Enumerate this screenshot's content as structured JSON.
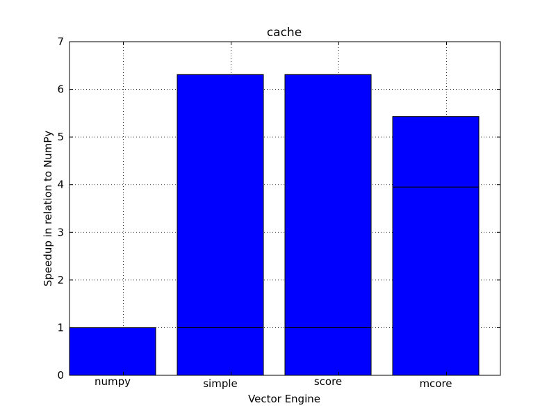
{
  "chart_data": {
    "type": "bar",
    "title": "cache",
    "xlabel": "Vector Engine",
    "ylabel": "Speedup in relation to NumPy",
    "categories": [
      "numpy",
      "simple",
      "score",
      "mcore"
    ],
    "series": [
      {
        "values": [
          1.0,
          1.0,
          1.0,
          3.95
        ]
      },
      {
        "values": [
          0.0,
          5.31,
          5.31,
          1.48
        ]
      }
    ],
    "stacked": true,
    "ylim": [
      0,
      7
    ],
    "yticks": [
      "0",
      "1",
      "2",
      "3",
      "4",
      "5",
      "6",
      "7"
    ],
    "grid": true,
    "colors": {
      "bar": "#0000ff",
      "edge": "#000000"
    }
  }
}
